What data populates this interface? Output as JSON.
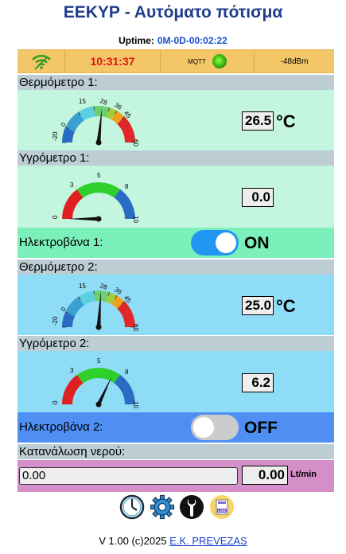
{
  "header": {
    "title": "ΕΕΚΥΡ - Αυτόματο πότισμα"
  },
  "uptime": {
    "label": "Uptime:",
    "value": "0M-0D-00:02:22"
  },
  "status": {
    "time": "10:31:37",
    "mqtt_label": "MQTT",
    "rssi": "-48dBm"
  },
  "sensors": {
    "thermo1": {
      "label": "Θερμόμετρο 1:",
      "value": "26.5",
      "unit": "°C"
    },
    "hygro1": {
      "label": "Υγρόμετρο 1:",
      "value": "0.0"
    },
    "valve1": {
      "label": "Ηλεκτροβάνα 1:",
      "state": "ON",
      "on": true
    },
    "thermo2": {
      "label": "Θερμόμετρο 2:",
      "value": "25.0",
      "unit": "°C"
    },
    "hygro2": {
      "label": "Υγρόμετρο 2:",
      "value": "6.2"
    },
    "valve2": {
      "label": "Ηλεκτροβάνα 2:",
      "state": "OFF",
      "on": false
    }
  },
  "gauges": {
    "thermo": {
      "min": -20,
      "max": 60,
      "ticks": [
        "-20",
        "0",
        "15",
        "28",
        "36",
        "45",
        "60"
      ]
    },
    "hygro": {
      "min": 0,
      "max": 10,
      "ticks": [
        "0",
        "3",
        "5",
        "8",
        "10"
      ]
    }
  },
  "water": {
    "label": "Κατανάλωση νερού:",
    "input_value": "0.00",
    "value": "0.00",
    "unit": "Lt/min"
  },
  "toolbar": {
    "log_label": "LOG"
  },
  "footer": {
    "text": "V 1.00 (c)2025",
    "link": "E.K. PREVEZAS"
  },
  "colors": {
    "accent": "#1f3d8a",
    "time": "#e01515",
    "toggle_on": "#2196f3",
    "toggle_off": "#cccccc"
  }
}
